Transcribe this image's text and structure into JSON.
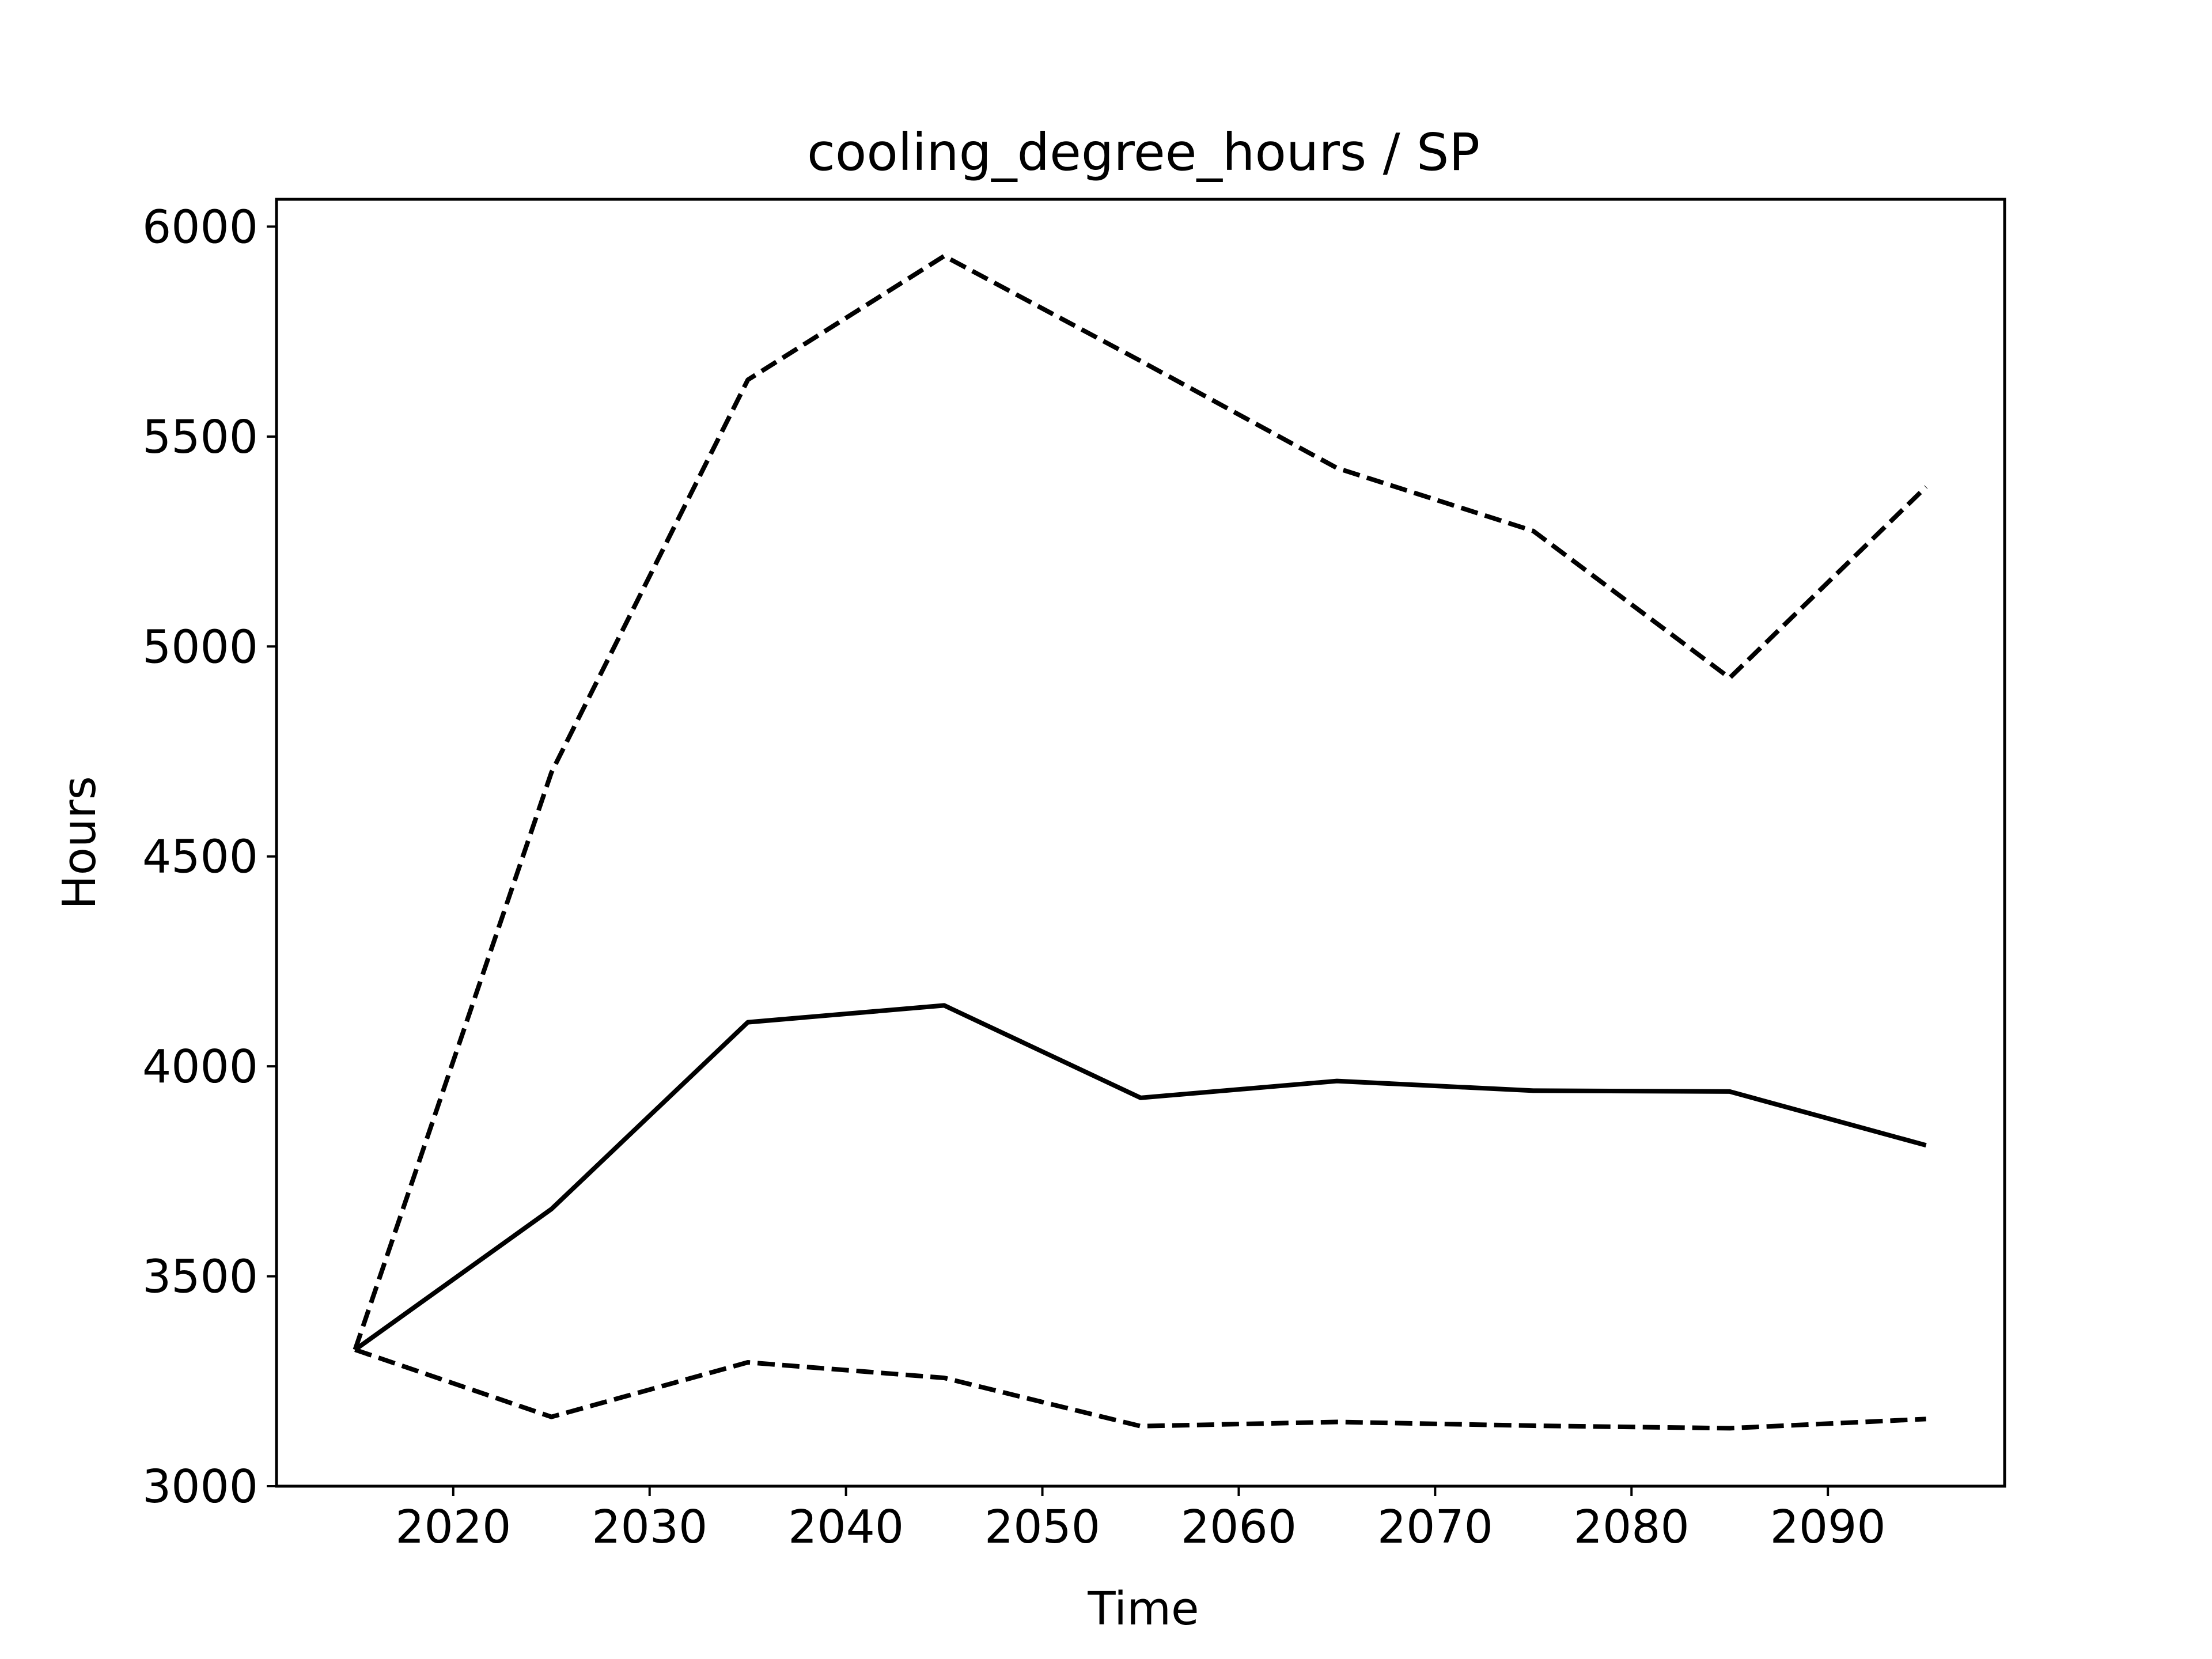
{
  "chart_data": {
    "type": "line",
    "title": "cooling_degree_hours / SP",
    "xlabel": "Time",
    "ylabel": "Hours",
    "x": [
      2015,
      2025,
      2035,
      2045,
      2055,
      2065,
      2075,
      2085,
      2095
    ],
    "xlim": [
      2011,
      2099
    ],
    "ylim": [
      3000,
      6065
    ],
    "xticks": [
      2020,
      2030,
      2040,
      2050,
      2060,
      2070,
      2080,
      2090
    ],
    "yticks": [
      3000,
      3500,
      4000,
      4500,
      5000,
      5500,
      6000
    ],
    "grid": false,
    "series": [
      {
        "line_style": "dashed",
        "color": "#000000",
        "values": [
          3325,
          4700,
          5635,
          5930,
          5680,
          5425,
          5275,
          4925,
          5380
        ]
      },
      {
        "line_style": "solid",
        "color": "#000000",
        "values": [
          3325,
          3660,
          4105,
          4145,
          3925,
          3965,
          3942,
          3940,
          3812
        ]
      },
      {
        "line_style": "dashed",
        "color": "#000000",
        "values": [
          3325,
          3165,
          3295,
          3258,
          3143,
          3153,
          3144,
          3138,
          3160
        ]
      }
    ]
  }
}
